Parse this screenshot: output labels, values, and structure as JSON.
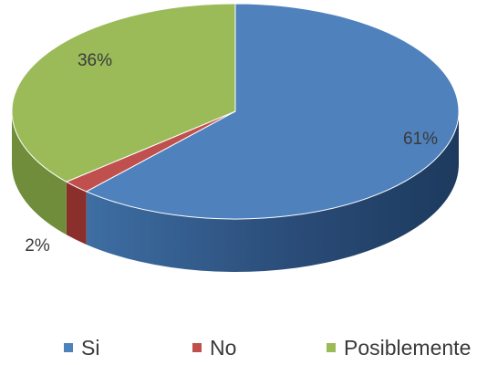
{
  "chart_data": {
    "type": "pie",
    "categories": [
      "Si",
      "No",
      "Posiblemente"
    ],
    "values": [
      61,
      2,
      36
    ],
    "labels": [
      "61%",
      "2%",
      "36%"
    ],
    "colors": {
      "Si": "#4f81bd",
      "No": "#c0504d",
      "Posiblemente": "#9bbb59"
    },
    "side_colors": {
      "Si": "#2f5480",
      "No": "#8b2f2c",
      "Posiblemente": "#6f8d3a"
    },
    "style": "3d-perspective",
    "legend_position": "bottom"
  },
  "legend": {
    "items": [
      {
        "label": "Si",
        "color": "#4f81bd"
      },
      {
        "label": "No",
        "color": "#c0504d"
      },
      {
        "label": "Posiblemente",
        "color": "#9bbb59"
      }
    ]
  }
}
